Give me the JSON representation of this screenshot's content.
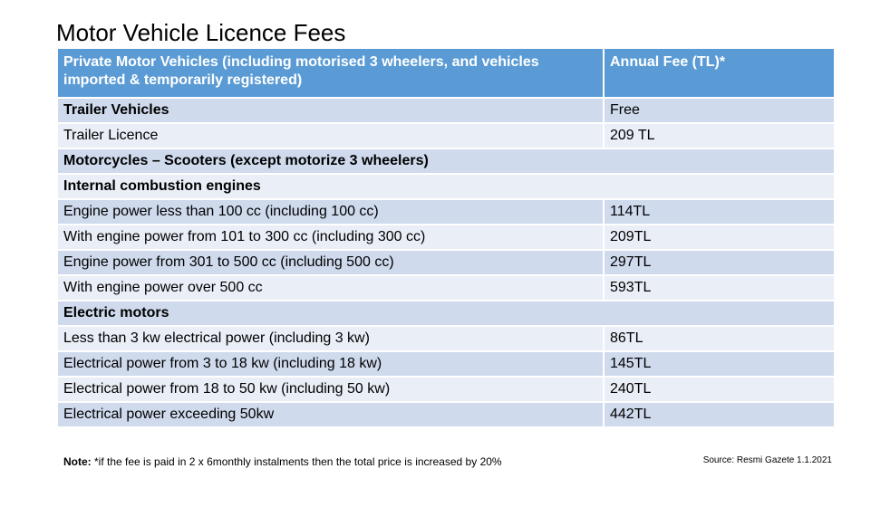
{
  "title": "Motor Vehicle Licence Fees",
  "table": {
    "headers": [
      "Private Motor Vehicles (including motorised 3 wheelers, and vehicles imported & temporarily registered)",
      "Annual Fee (TL)*"
    ],
    "rows": [
      {
        "label": "Trailer Vehicles",
        "fee": "Free",
        "bold": true,
        "span": false
      },
      {
        "label": "Trailer Licence",
        "fee": "209 TL",
        "bold": false,
        "span": false
      },
      {
        "label": "Motorcycles – Scooters (except motorize 3 wheelers)",
        "fee": "",
        "bold": true,
        "span": true
      },
      {
        "label": "Internal combustion engines",
        "fee": "",
        "bold": true,
        "span": true
      },
      {
        "label": "Engine power less than 100 cc (including 100 cc)",
        "fee": "114TL",
        "bold": false,
        "span": false
      },
      {
        "label": "With engine power from 101 to 300 cc (including 300 cc)",
        "fee": "209TL",
        "bold": false,
        "span": false
      },
      {
        "label": "Engine power from 301 to 500 cc (including 500 cc)",
        "fee": "297TL",
        "bold": false,
        "span": false
      },
      {
        "label": "With engine power over 500 cc",
        "fee": "593TL",
        "bold": false,
        "span": false
      },
      {
        "label": "Electric motors",
        "fee": "",
        "bold": true,
        "span": true
      },
      {
        "label": "Less than 3 kw electrical power (including 3 kw)",
        "fee": "86TL",
        "bold": false,
        "span": false
      },
      {
        "label": "Electrical power from 3 to 18 kw (including 18 kw)",
        "fee": "145TL",
        "bold": false,
        "span": false
      },
      {
        "label": "Electrical power from 18 to 50 kw (including 50 kw)",
        "fee": "240TL",
        "bold": false,
        "span": false
      },
      {
        "label": "Electrical power exceeding 50kw",
        "fee": "442TL",
        "bold": false,
        "span": false
      }
    ]
  },
  "note": {
    "label": "Note:",
    "text": " *if the fee is paid in 2 x  6monthly instalments then the total price is increased by 20%"
  },
  "source": "Source:  Resmi Gazete 1.1.2021",
  "colors": {
    "header_bg": "#5b9bd5",
    "row_dark": "#cfdaed",
    "row_light": "#e9eef7"
  }
}
